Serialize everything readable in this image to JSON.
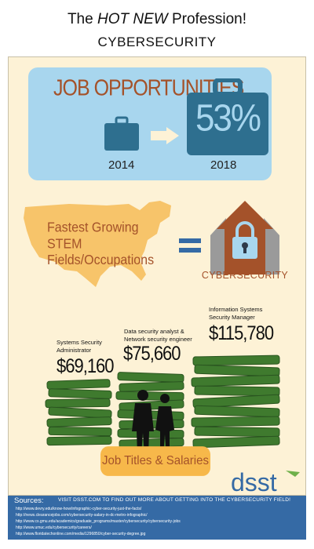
{
  "header": {
    "title_prefix": "The",
    "title_em": "HOT NEW",
    "title_suffix": "Profession!",
    "subtitle": "CYBERSECURITY"
  },
  "job_opportunities": {
    "heading": "JOB OPPORTUNITIES",
    "percent": "53%",
    "year_from": "2014",
    "year_to": "2018"
  },
  "growth": {
    "text_line1": "Fastest Growing",
    "text_line2": "STEM Fields/Occupations",
    "result_label": "CYBERSECURITY"
  },
  "jobs": [
    {
      "title_line1": "Systems Security",
      "title_line2": "Administrator",
      "salary": "$69,160"
    },
    {
      "title_line1": "Data security analyst &",
      "title_line2": "Network security engineer",
      "salary": "$75,660"
    },
    {
      "title_line1": "Information Systems",
      "title_line2": "Security Manager",
      "salary": "$115,780"
    }
  ],
  "jobs_banner": "Job Titles & Salaries",
  "brand": {
    "name": "dsst"
  },
  "footer": {
    "sources_title": "Sources:",
    "visit_text": "VISIT DSST.COM TO FIND OUT MORE ABOUT GETTING INTO THE CYBERSECURITY FIELD!",
    "sources": [
      "http://www.devry.edu/know-how/infographic-cyber-security-just-the-facts/",
      "http://news.clearancejobs.com/cybersecurity-salary-in-dc-metro-infographic/",
      "http://www.cs.gmu.edu/academics/graduate_programs/master/cybersecurity/cybersecurity-jobs",
      "http://www.umuc.edu/cybersecurity/careers/",
      "http://www.floridatechonline.com/media/1296850/cyber-security-degree.jpg"
    ]
  },
  "colors": {
    "panel_bg": "#fdf2d6",
    "job_box_bg": "#a8d6ee",
    "briefcase": "#2e6f8f",
    "accent_brown": "#a4522a",
    "money_green": "#3a6b2c",
    "banner_orange": "#f7b84a",
    "footer_blue": "#356aa5"
  }
}
